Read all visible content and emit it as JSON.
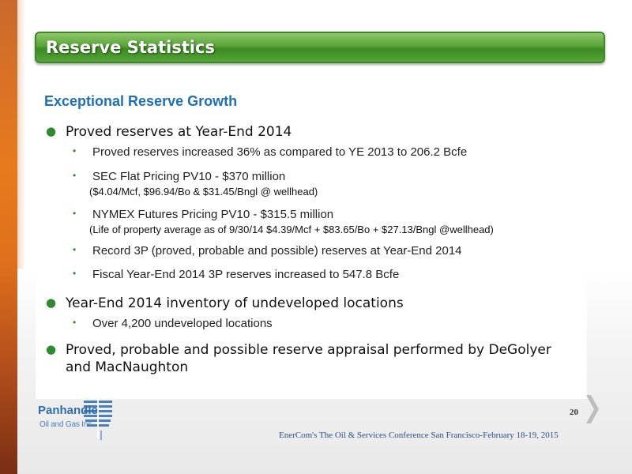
{
  "slide": {
    "title": "Reserve Statistics",
    "heading": "Exceptional Reserve Growth",
    "page_number": "20",
    "footer": "EnerCom's The Oil & Services Conference San Francisco-February 18-19, 2015"
  },
  "bullets": {
    "b1": "Proved reserves at Year-End 2014",
    "b1_1": "Proved reserves increased 36% as compared to YE 2013 to 206.2 Bcfe",
    "b1_2": "SEC Flat Pricing PV10 - $370 million",
    "b1_2_sub": "($4.04/Mcf, $96.94/Bo & $31.45/Bngl @ wellhead)",
    "b1_3": "NYMEX Futures Pricing PV10 - $315.5 million",
    "b1_3_sub": "(Life of property average as of 9/30/14  $4.39/Mcf + $83.65/Bo + $27.13/Bngl @wellhead)",
    "b1_4": "Record 3P (proved, probable and possible) reserves at Year-End 2014",
    "b1_5": "Fiscal Year-End 2014 3P reserves increased to 547.8 Bcfe",
    "b2": "Year-End 2014 inventory of undeveloped locations",
    "b2_1": "Over 4,200 undeveloped locations",
    "b3_line1": "Proved, probable and possible reserve appraisal performed by DeGolyer",
    "b3_line2": "and MacNaughton"
  },
  "logo": {
    "name": "Panhandle",
    "sub": "Oil and Gas Inc."
  },
  "colors": {
    "title_green": "#5aa33a",
    "heading_blue": "#1f6fb5",
    "bullet_green": "#2e8a2e",
    "accent_orange": "#e77a1e"
  },
  "icons": {
    "next": "chevron-right-icon",
    "logo_mark": "oil-derrick-logo"
  }
}
